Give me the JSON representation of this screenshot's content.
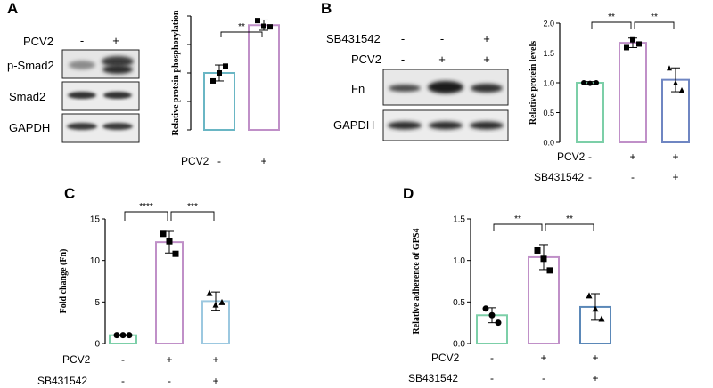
{
  "panels": {
    "A": {
      "label": "A",
      "blot": {
        "condition_label": "PCV2",
        "condition_signs": [
          "-",
          "+"
        ],
        "rows": [
          "p-Smad2",
          "Smad2",
          "GAPDH"
        ]
      }
    },
    "B": {
      "label": "B",
      "blot": {
        "conditions": [
          {
            "name": "SB431542",
            "signs": [
              "-",
              "-",
              "+"
            ]
          },
          {
            "name": "PCV2",
            "signs": [
              "-",
              "+",
              "+"
            ]
          }
        ],
        "rows": [
          "Fn",
          "GAPDH"
        ]
      }
    },
    "C": {
      "label": "C"
    },
    "D": {
      "label": "D"
    }
  },
  "chart_data": [
    {
      "id": "A",
      "type": "bar",
      "ylabel": "Relative protein phosphorylation",
      "ylim": [
        0,
        2.0
      ],
      "yticks": [],
      "categories": [
        "1",
        "2"
      ],
      "values": [
        1.0,
        1.84
      ],
      "errors": [
        0.14,
        0.09
      ],
      "points": [
        [
          0.86,
          1.0,
          1.12
        ],
        [
          1.92,
          1.82,
          1.81
        ]
      ],
      "marker": "square",
      "colors": [
        "#6ab6c4",
        "#c090c8"
      ],
      "condition_rows": [
        {
          "name": "PCV2",
          "signs": [
            "-",
            "+"
          ]
        }
      ],
      "significance": [
        {
          "from": 0,
          "to": 1,
          "label": "**"
        }
      ]
    },
    {
      "id": "B",
      "type": "bar",
      "ylabel": "Relative protein levels",
      "ylim": [
        0,
        2.0
      ],
      "yticks": [
        "0.0",
        "0.5",
        "1.0",
        "1.5",
        "2.0"
      ],
      "categories": [
        "1",
        "2",
        "3"
      ],
      "values": [
        1.0,
        1.67,
        1.05
      ],
      "errors": [
        0.02,
        0.08,
        0.2
      ],
      "points": [
        [
          1.0,
          0.99,
          1.0
        ],
        [
          1.59,
          1.72,
          1.65
        ],
        [
          1.25,
          1.0,
          0.88
        ]
      ],
      "marker": "mixed",
      "colors": [
        "#7ccfa8",
        "#c090c8",
        "#6f86c2"
      ],
      "condition_rows": [
        {
          "name": "PCV2",
          "signs": [
            "-",
            "+",
            "+"
          ]
        },
        {
          "name": "SB431542",
          "signs": [
            "-",
            "-",
            "+"
          ]
        }
      ],
      "significance": [
        {
          "from": 0,
          "to": 1,
          "label": "**"
        },
        {
          "from": 1,
          "to": 2,
          "label": "**"
        }
      ]
    },
    {
      "id": "C",
      "type": "bar",
      "ylabel": "Fold change (Fn)",
      "ylim": [
        0,
        15
      ],
      "yticks": [
        "0",
        "5",
        "10",
        "15"
      ],
      "categories": [
        "1",
        "2",
        "3"
      ],
      "values": [
        1.0,
        12.2,
        5.1
      ],
      "errors": [
        0.05,
        1.3,
        1.1
      ],
      "points": [
        [
          1.0,
          1.0,
          1.0
        ],
        [
          13.2,
          12.3,
          10.8
        ],
        [
          6.1,
          4.7,
          5.0
        ]
      ],
      "marker": "mixed",
      "colors": [
        "#7ccfa8",
        "#c090c8",
        "#9cc8e0"
      ],
      "condition_rows": [
        {
          "name": "PCV2",
          "signs": [
            "-",
            "+",
            "+"
          ]
        },
        {
          "name": "SB431542",
          "signs": [
            "-",
            "-",
            "+"
          ]
        }
      ],
      "significance": [
        {
          "from": 0,
          "to": 1,
          "label": "****"
        },
        {
          "from": 1,
          "to": 2,
          "label": "***"
        }
      ]
    },
    {
      "id": "D",
      "type": "bar",
      "ylabel": "Relative adherence of GPS4",
      "ylim": [
        0,
        1.5
      ],
      "yticks": [
        "0.0",
        "0.5",
        "1.0",
        "1.5"
      ],
      "categories": [
        "1",
        "2",
        "3"
      ],
      "values": [
        0.34,
        1.04,
        0.44
      ],
      "errors": [
        0.09,
        0.15,
        0.16
      ],
      "points": [
        [
          0.42,
          0.34,
          0.25
        ],
        [
          1.12,
          1.02,
          0.88
        ],
        [
          0.58,
          0.42,
          0.3
        ]
      ],
      "marker": "mixed",
      "colors": [
        "#7ccfa8",
        "#c090c8",
        "#5b88b8"
      ],
      "condition_rows": [
        {
          "name": "PCV2",
          "signs": [
            "-",
            "+",
            "+"
          ]
        },
        {
          "name": "SB431542",
          "signs": [
            "-",
            "-",
            "+"
          ]
        }
      ],
      "significance": [
        {
          "from": 0,
          "to": 1,
          "label": "**"
        },
        {
          "from": 1,
          "to": 2,
          "label": "**"
        }
      ]
    }
  ]
}
